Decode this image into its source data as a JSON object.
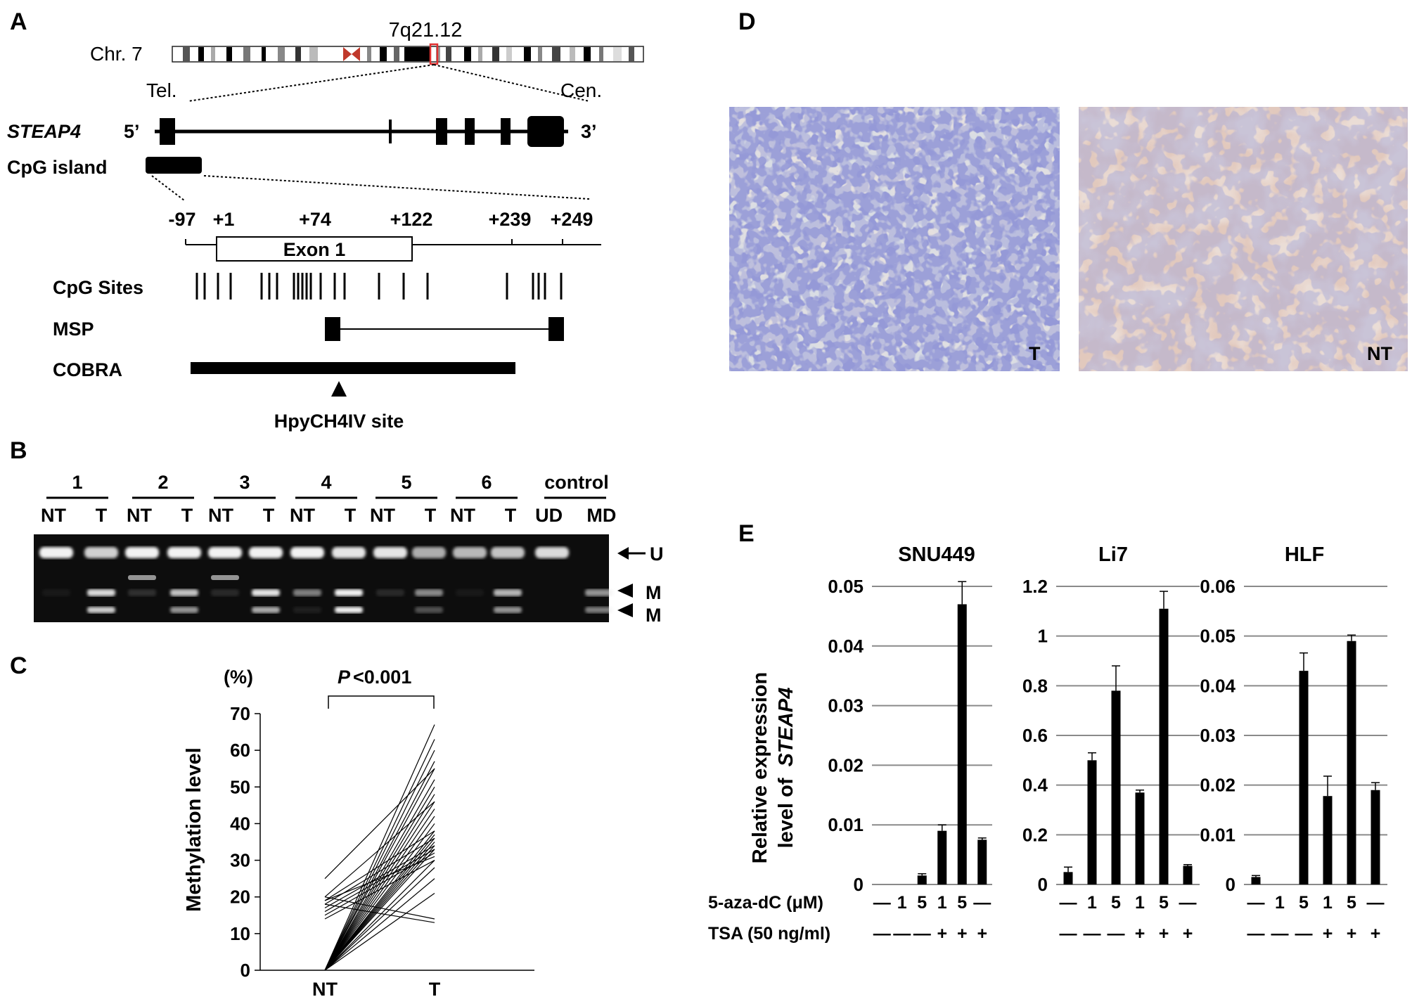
{
  "panel_labels": {
    "a": "A",
    "b": "B",
    "c": "C",
    "d": "D",
    "e": "E"
  },
  "panel_a": {
    "chr_label": "Chr. 7",
    "band": "7q21.12",
    "tel": "Tel.",
    "cen": "Cen.",
    "gene": "STEAP4",
    "five_prime": "5’",
    "three_prime": "3’",
    "cpg_island": "CpG island",
    "positions": [
      "-97",
      "+1",
      "+74",
      "+122",
      "+239",
      "+249"
    ],
    "exon_label": "Exon 1",
    "cpg_sites": "CpG Sites",
    "msp": "MSP",
    "cobra": "COBRA",
    "site": "HpyCH4IV site"
  },
  "panel_b": {
    "groups": [
      {
        "label": "1",
        "lanes": [
          "NT",
          "T"
        ]
      },
      {
        "label": "2",
        "lanes": [
          "NT",
          "T"
        ]
      },
      {
        "label": "3",
        "lanes": [
          "NT",
          "T"
        ]
      },
      {
        "label": "4",
        "lanes": [
          "NT",
          "T"
        ]
      },
      {
        "label": "5",
        "lanes": [
          "NT",
          "T"
        ]
      },
      {
        "label": "6",
        "lanes": [
          "NT",
          "T"
        ]
      },
      {
        "label": "control",
        "lanes": [
          "UD",
          "MD"
        ]
      }
    ],
    "band_labels": {
      "u": "U",
      "m1": "M",
      "m2": "M"
    }
  },
  "panel_c": {
    "unit": "(%)",
    "p_letter": "P",
    "p_value": "<0.001",
    "ylabel": "Methylation level",
    "categories": [
      "NT",
      "T"
    ],
    "yticks": [
      "0",
      "10",
      "20",
      "30",
      "40",
      "50",
      "60",
      "70"
    ]
  },
  "panel_d": {
    "left_label": "T",
    "right_label": "NT"
  },
  "panel_e": {
    "ylabel_line1": "Relative expression",
    "ylabel_line2": "level of",
    "ylabel_gene": "STEAP4",
    "aza_label": "5-aza-dC (μM)",
    "tsa_label": "TSA (50 ng/ml)",
    "aza_treatments": [
      "—",
      "1",
      "5",
      "1",
      "5",
      "—"
    ],
    "tsa_treatments": [
      "—",
      "—",
      "—",
      "+",
      "+",
      "+"
    ],
    "charts": [
      {
        "title": "SNU449",
        "ticks": [
          "0",
          "0.01",
          "0.02",
          "0.03",
          "0.04",
          "0.05"
        ]
      },
      {
        "title": "Li7",
        "ticks": [
          "0",
          "0.2",
          "0.4",
          "0.6",
          "0.8",
          "1",
          "1.2"
        ]
      },
      {
        "title": "HLF",
        "ticks": [
          "0",
          "0.01",
          "0.02",
          "0.03",
          "0.04",
          "0.05",
          "0.06"
        ]
      }
    ]
  },
  "chart_data": [
    {
      "type": "line",
      "title": "",
      "xlabel": "",
      "ylabel": "Methylation level",
      "categories": [
        "NT",
        "T"
      ],
      "ylim": [
        0,
        70
      ],
      "grid": false,
      "pairs": [
        [
          0,
          67
        ],
        [
          0,
          63
        ],
        [
          0,
          60
        ],
        [
          0,
          57
        ],
        [
          0,
          55
        ],
        [
          0,
          52
        ],
        [
          0,
          50
        ],
        [
          0,
          48
        ],
        [
          0,
          46
        ],
        [
          0,
          44
        ],
        [
          0,
          42
        ],
        [
          0,
          40
        ],
        [
          0,
          38
        ],
        [
          0,
          37
        ],
        [
          0,
          36
        ],
        [
          0,
          35
        ],
        [
          0,
          34
        ],
        [
          0,
          33
        ],
        [
          0,
          30
        ],
        [
          0,
          28
        ],
        [
          0,
          25
        ],
        [
          0,
          21
        ],
        [
          25,
          55
        ],
        [
          20,
          46
        ],
        [
          19,
          38
        ],
        [
          18,
          36
        ],
        [
          17,
          34
        ],
        [
          16,
          33
        ],
        [
          15,
          32
        ],
        [
          14,
          30
        ],
        [
          18,
          13
        ],
        [
          20,
          14
        ],
        [
          19,
          31
        ]
      ]
    },
    {
      "type": "bar",
      "title": "SNU449",
      "ylabel": "Relative expression level of STEAP4",
      "categories": [
        "— / —",
        "1 / —",
        "5 / —",
        "1 / +",
        "5 / +",
        "— / +"
      ],
      "values": [
        0,
        0,
        0.0015,
        0.009,
        0.047,
        0.0075
      ],
      "errors": [
        0,
        0,
        0.0003,
        0.001,
        0.0038,
        0.0003
      ],
      "ylim": [
        0,
        0.05
      ],
      "grid": true
    },
    {
      "type": "bar",
      "title": "Li7",
      "ylabel": "Relative expression level of STEAP4",
      "categories": [
        "— / —",
        "1 / —",
        "5 / —",
        "1 / +",
        "5 / +",
        "— / +"
      ],
      "values": [
        0.05,
        0.5,
        0.78,
        0.37,
        1.11,
        0.075
      ],
      "errors": [
        0.02,
        0.03,
        0.1,
        0.01,
        0.07,
        0.005
      ],
      "ylim": [
        0,
        1.2
      ],
      "grid": true
    },
    {
      "type": "bar",
      "title": "HLF",
      "ylabel": "Relative expression level of STEAP4",
      "categories": [
        "— / —",
        "1 / —",
        "5 / —",
        "1 / +",
        "5 / +",
        "— / +"
      ],
      "values": [
        0.0015,
        0,
        0.043,
        0.0178,
        0.049,
        0.019
      ],
      "errors": [
        0.0003,
        0,
        0.0036,
        0.004,
        0.0012,
        0.0015
      ],
      "ylim": [
        0,
        0.06
      ],
      "grid": true
    }
  ]
}
